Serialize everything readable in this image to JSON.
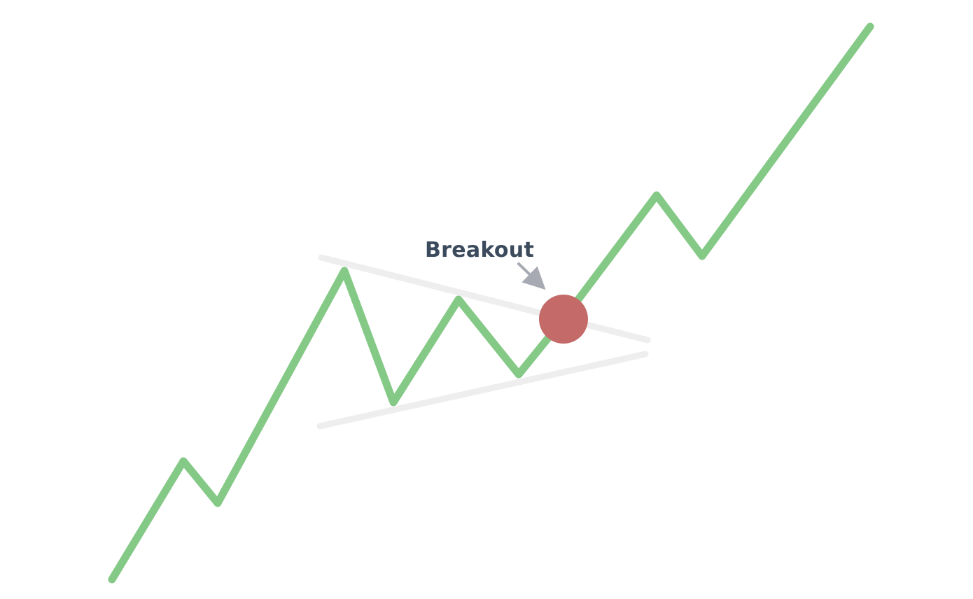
{
  "annotation": {
    "label": "Breakout"
  },
  "colors": {
    "background": "#ffffff",
    "price_line": "#84c986",
    "trendline": "#eeeeee",
    "breakout_marker": "#c46a68",
    "label_text": "#3b4a5c",
    "arrow": "#a7aab3"
  },
  "pattern": {
    "type": "symmetrical-triangle-breakout",
    "direction": "up"
  }
}
